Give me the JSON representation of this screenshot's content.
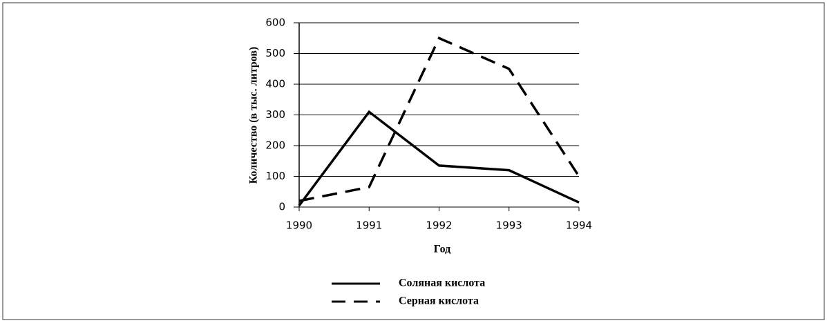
{
  "chart_data": {
    "type": "line",
    "xlabel": "Год",
    "ylabel": "Количество (в тыс. литров)",
    "x": [
      1990,
      1991,
      1992,
      1993,
      1994
    ],
    "xlim": [
      1990,
      1994
    ],
    "xticks": [
      1990,
      1991,
      1992,
      1993,
      1994
    ],
    "ylim": [
      0,
      600
    ],
    "yticks": [
      0,
      100,
      200,
      300,
      400,
      500,
      600
    ],
    "grid": true,
    "legend": "bottom",
    "series": [
      {
        "name": "Соляная кислота",
        "color": "#000000",
        "line_style": "solid",
        "values": [
          5,
          310,
          135,
          120,
          15
        ]
      },
      {
        "name": "Серная кислота",
        "color": "#000000",
        "line_style": "dashed",
        "values": [
          20,
          65,
          550,
          450,
          100
        ]
      }
    ]
  }
}
